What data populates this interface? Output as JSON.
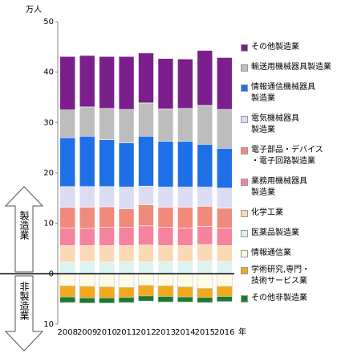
{
  "chart_data": {
    "type": "stacked_bar",
    "unit_label": "万人",
    "x_unit_label": "年",
    "upper_label": "製造業",
    "lower_label": "非製造業",
    "categories": [
      "2008",
      "2009",
      "2010",
      "2011",
      "2012",
      "2013",
      "2014",
      "2015",
      "2016"
    ],
    "ylim": [
      -10,
      50
    ],
    "yticks": [
      {
        "value": -10,
        "label": "10"
      },
      0,
      10,
      20,
      30,
      40,
      50
    ],
    "series": [
      {
        "name": "その他製造業",
        "color": "#7b1f8c",
        "values": [
          10.6,
          10.2,
          10.3,
          10.5,
          9.9,
          10.0,
          9.8,
          10.9,
          10.3
        ]
      },
      {
        "name": "輸送用機械器具製造業",
        "color": "#bdbdbd",
        "values": [
          5.5,
          5.8,
          6.2,
          6.6,
          6.6,
          6.4,
          6.5,
          7.7,
          7.7
        ]
      },
      {
        "name": "情報通信機械器具\n製造業",
        "color": "#1f6fe6",
        "values": [
          9.7,
          10.0,
          9.3,
          8.8,
          9.9,
          9.1,
          9.1,
          8.5,
          7.9
        ]
      },
      {
        "name": "電気機械器具\n製造業",
        "color": "#dcdcf5",
        "values": [
          4.1,
          4.1,
          4.0,
          4.3,
          3.7,
          4.0,
          4.0,
          3.8,
          4.0
        ]
      },
      {
        "name": "電子部品・デバイス\n・電子回路製造業",
        "color": "#f08a7a",
        "values": [
          4.1,
          4.2,
          4.1,
          3.7,
          4.2,
          4.0,
          4.1,
          4.0,
          3.9
        ]
      },
      {
        "name": "業務用機械器具\n製造業",
        "color": "#f5839e",
        "values": [
          3.5,
          3.4,
          3.6,
          3.6,
          3.8,
          3.6,
          3.5,
          3.6,
          3.5
        ]
      },
      {
        "name": "化学工業",
        "color": "#fbd9b5",
        "values": [
          3.3,
          3.2,
          3.3,
          3.2,
          3.4,
          3.2,
          3.2,
          3.3,
          3.2
        ]
      },
      {
        "name": "医薬品製造業",
        "color": "#ddf3f0",
        "values": [
          2.3,
          2.4,
          2.3,
          2.4,
          2.3,
          2.4,
          2.4,
          2.5,
          2.4
        ]
      },
      {
        "name": "情報通信業",
        "color": "#fffbe6",
        "values": [
          -2.4,
          -2.5,
          -2.6,
          -2.7,
          -2.3,
          -2.4,
          -2.6,
          -2.9,
          -2.5
        ]
      },
      {
        "name": "学術研究,専門・\n技術サービス業",
        "color": "#f2a91e",
        "values": [
          -2.2,
          -2.3,
          -2.2,
          -2.0,
          -2.1,
          -2.1,
          -2.0,
          -1.8,
          -2.0
        ]
      },
      {
        "name": "その他非製造業",
        "color": "#1e7a2e",
        "values": [
          -1.1,
          -1.0,
          -1.0,
          -1.0,
          -1.0,
          -1.1,
          -1.0,
          -1.0,
          -1.0
        ]
      }
    ]
  }
}
